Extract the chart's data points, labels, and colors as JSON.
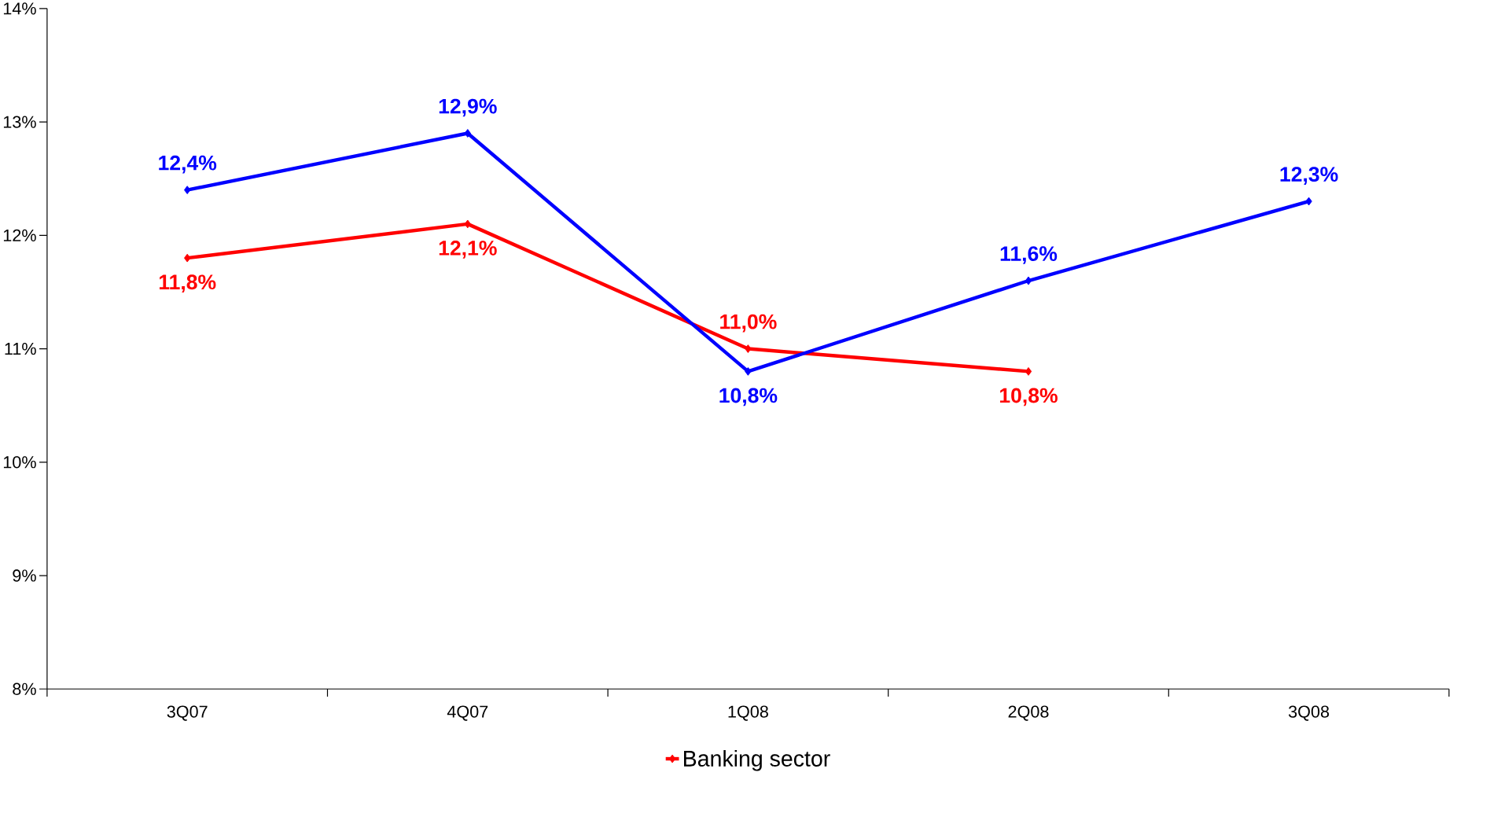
{
  "chart_data": {
    "type": "line",
    "categories": [
      "3Q07",
      "4Q07",
      "1Q08",
      "2Q08",
      "3Q08"
    ],
    "series": [
      {
        "name": "Banking sector",
        "color": "#ff0000",
        "values": [
          11.8,
          12.1,
          11.0,
          10.8,
          null
        ],
        "value_labels": [
          "11,8%",
          "12,1%",
          "11,0%",
          "10,8%",
          null
        ]
      },
      {
        "color": "#0000ff",
        "values": [
          12.4,
          12.9,
          10.8,
          11.6,
          12.3
        ],
        "value_labels": [
          "12,4%",
          "12,9%",
          "10,8%",
          "11,6%",
          "12,3%"
        ]
      }
    ],
    "ylim": [
      8,
      14
    ],
    "yticks": [
      {
        "value": 8,
        "label": "8%"
      },
      {
        "value": 9,
        "label": "9%"
      },
      {
        "value": 10,
        "label": "10%"
      },
      {
        "value": 11,
        "label": "11%"
      },
      {
        "value": 12,
        "label": "12%"
      },
      {
        "value": 13,
        "label": "13%"
      },
      {
        "value": 14,
        "label": "14%"
      }
    ],
    "marker": "diamond",
    "legend": "bottom"
  }
}
